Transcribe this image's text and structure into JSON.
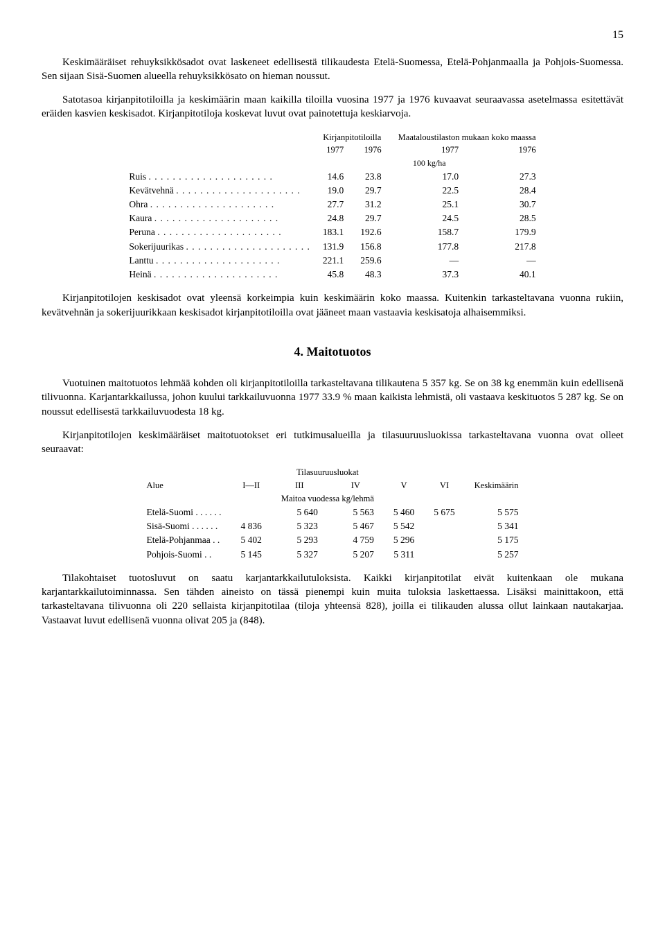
{
  "page_number": "15",
  "para1": "Keskimääräiset rehuyksikkösadot ovat laskeneet edellisestä tilikaudesta Etelä-Suomessa, Etelä-Pohjanmaalla ja Pohjois-Suomessa. Sen sijaan Sisä-Suomen alueella rehuyksikkösato on hieman noussut.",
  "para2": "Satotasoa kirjanpitotiloilla ja keskimäärin maan kaikilla tiloilla vuosina 1977 ja 1976 kuvaavat seuraavassa asetelmassa esitettävät eräiden kasvien keskisadot. Kirjanpitotiloja koskevat luvut ovat painotettuja keskiarvoja.",
  "table1": {
    "group1_label": "Kirjanpitotiloilla",
    "group2_label": "Maataloustilaston mukaan koko maassa",
    "year_cols": [
      "1977",
      "1976",
      "1977",
      "1976"
    ],
    "unit": "100 kg/ha",
    "rows": [
      {
        "label": "Ruis",
        "v": [
          "14.6",
          "23.8",
          "17.0",
          "27.3"
        ]
      },
      {
        "label": "Kevätvehnä",
        "v": [
          "19.0",
          "29.7",
          "22.5",
          "28.4"
        ]
      },
      {
        "label": "Ohra",
        "v": [
          "27.7",
          "31.2",
          "25.1",
          "30.7"
        ]
      },
      {
        "label": "Kaura",
        "v": [
          "24.8",
          "29.7",
          "24.5",
          "28.5"
        ]
      },
      {
        "label": "Peruna",
        "v": [
          "183.1",
          "192.6",
          "158.7",
          "179.9"
        ]
      },
      {
        "label": "Sokerijuurikas",
        "v": [
          "131.9",
          "156.8",
          "177.8",
          "217.8"
        ]
      },
      {
        "label": "Lanttu",
        "v": [
          "221.1",
          "259.6",
          "—",
          "—"
        ]
      },
      {
        "label": "Heinä",
        "v": [
          "45.8",
          "48.3",
          "37.3",
          "40.1"
        ]
      }
    ]
  },
  "para3": "Kirjanpitotilojen keskisadot ovat yleensä korkeimpia kuin keskimäärin koko maassa. Kuitenkin tarkasteltavana vuonna rukiin, kevätvehnän ja sokerijuurikkaan keskisadot kirjanpitotiloilla ovat jääneet maan vastaavia keskisatoja alhaisemmiksi.",
  "section_title": "4. Maitotuotos",
  "para4": "Vuotuinen maitotuotos lehmää kohden oli kirjanpitotiloilla tarkasteltavana tilikautena 5 357 kg. Se on 38 kg enemmän kuin edellisenä tilivuonna. Karjantarkkailussa, johon kuului tarkkailuvuonna 1977 33.9 % maan kaikista lehmistä, oli vastaava keskituotos 5 287 kg. Se on noussut edellisestä tarkkailuvuodesta 18 kg.",
  "para5": "Kirjanpitotilojen keskimääräiset maitotuotokset eri tutkimusalueilla ja tilasuuruusluokissa tarkasteltavana vuonna ovat olleet seuraavat:",
  "table2": {
    "col_area": "Alue",
    "group_label": "Tilasuuruusluokat",
    "cols": [
      "I—II",
      "III",
      "IV",
      "V",
      "VI",
      "Keskimäärin"
    ],
    "unit": "Maitoa vuodessa kg/lehmä",
    "rows": [
      {
        "label": "Etelä-Suomi",
        "v": [
          "",
          "5 640",
          "5 563",
          "5 460",
          "5 675",
          "5 575"
        ]
      },
      {
        "label": "Sisä-Suomi",
        "v": [
          "4 836",
          "5 323",
          "5 467",
          "5 542",
          "",
          "5 341"
        ]
      },
      {
        "label": "Etelä-Pohjanmaa",
        "v": [
          "5 402",
          "5 293",
          "4 759",
          "5 296",
          "",
          "5 175"
        ]
      },
      {
        "label": "Pohjois-Suomi",
        "v": [
          "5 145",
          "5 327",
          "5 207",
          "5 311",
          "",
          "5 257"
        ]
      }
    ]
  },
  "para6": "Tilakohtaiset tuotosluvut on saatu karjantarkkailutuloksista. Kaikki kirjanpitotilat eivät kuitenkaan ole mukana karjantarkkailutoiminnassa. Sen tähden aineisto on tässä pienempi kuin muita tuloksia laskettaessa. Lisäksi mainittakoon, että tarkasteltavana tilivuonna oli 220 sellaista kirjanpitotilaa (tiloja yhteensä 828), joilla ei tilikauden alussa ollut lainkaan nautakarjaa. Vastaavat luvut edellisenä vuonna olivat 205 ja (848)."
}
